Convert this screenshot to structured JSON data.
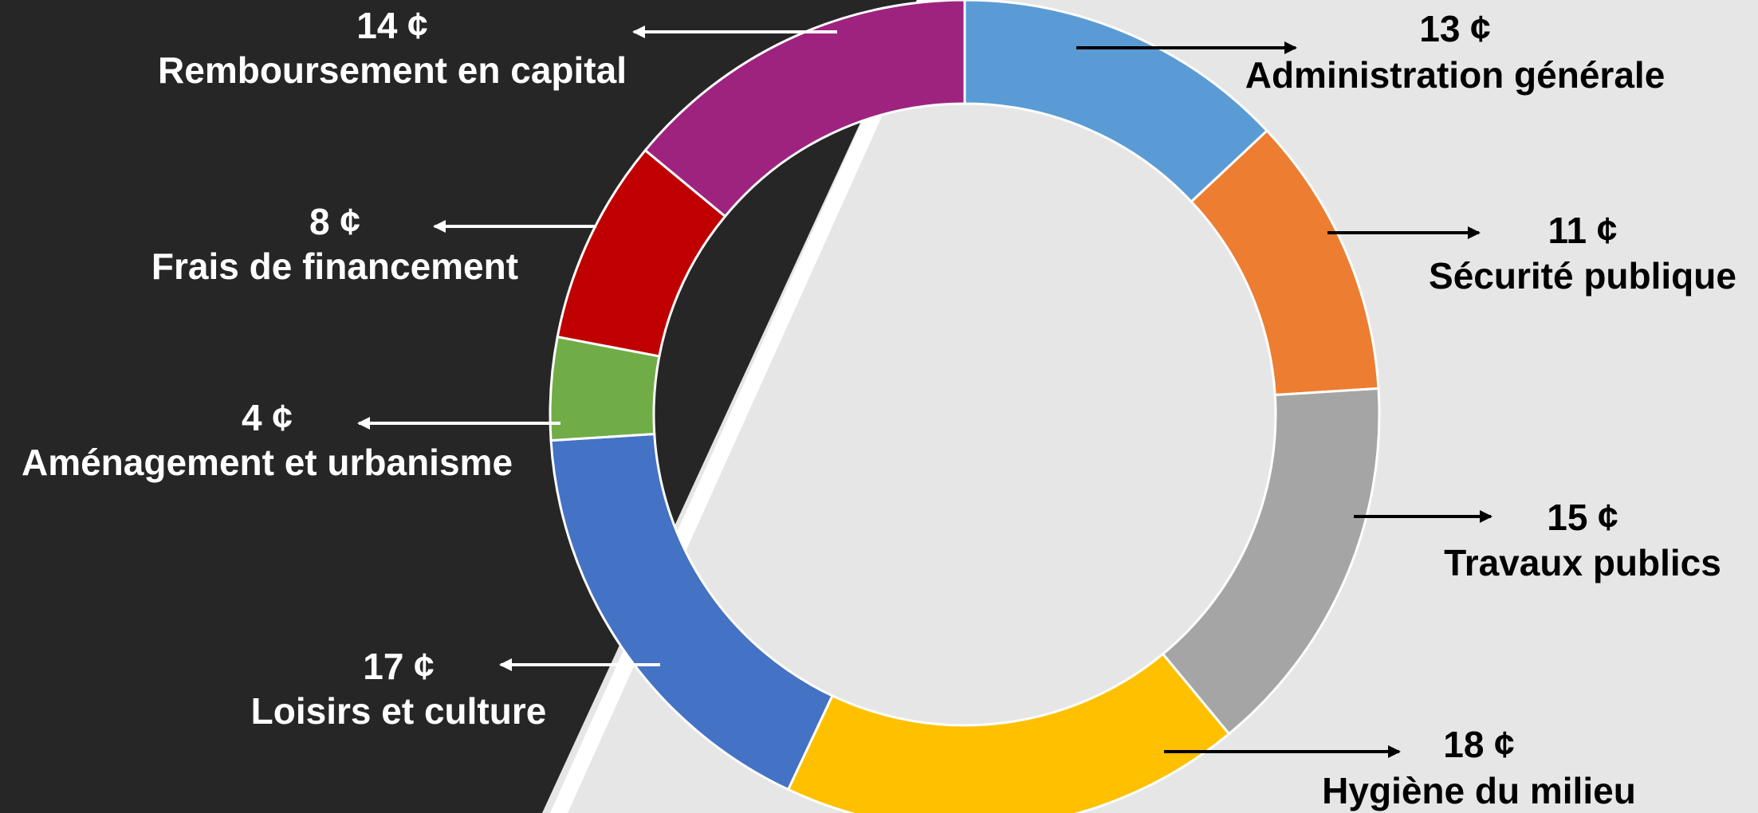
{
  "colors": {
    "background_light": "#e6e6e6",
    "background_dark": "#262626",
    "divider": "#ffffff",
    "label_dark_side": "#ffffff",
    "label_light_side": "#000000"
  },
  "chart_data": {
    "type": "pie",
    "donut": true,
    "unit": "¢",
    "slices": [
      {
        "label": "Administration générale",
        "value": 13,
        "value_text": "13 ¢",
        "color": "#5b9bd5"
      },
      {
        "label": "Sécurité publique",
        "value": 11,
        "value_text": "11 ¢",
        "color": "#ed7d31"
      },
      {
        "label": "Travaux publics",
        "value": 15,
        "value_text": "15 ¢",
        "color": "#a5a5a5"
      },
      {
        "label": "Hygiène du milieu",
        "value": 18,
        "value_text": "18 ¢",
        "color": "#ffc000"
      },
      {
        "label": "Loisirs et culture",
        "value": 17,
        "value_text": "17 ¢",
        "color": "#4472c4"
      },
      {
        "label": "Aménagement et urbanisme",
        "value": 4,
        "value_text": "4 ¢",
        "color": "#70ad47"
      },
      {
        "label": "Frais de financement",
        "value": 8,
        "value_text": "8 ¢",
        "color": "#c00000"
      },
      {
        "label": "Remboursement en capital",
        "value": 14,
        "value_text": "14 ¢",
        "color": "#9e237f"
      }
    ]
  }
}
